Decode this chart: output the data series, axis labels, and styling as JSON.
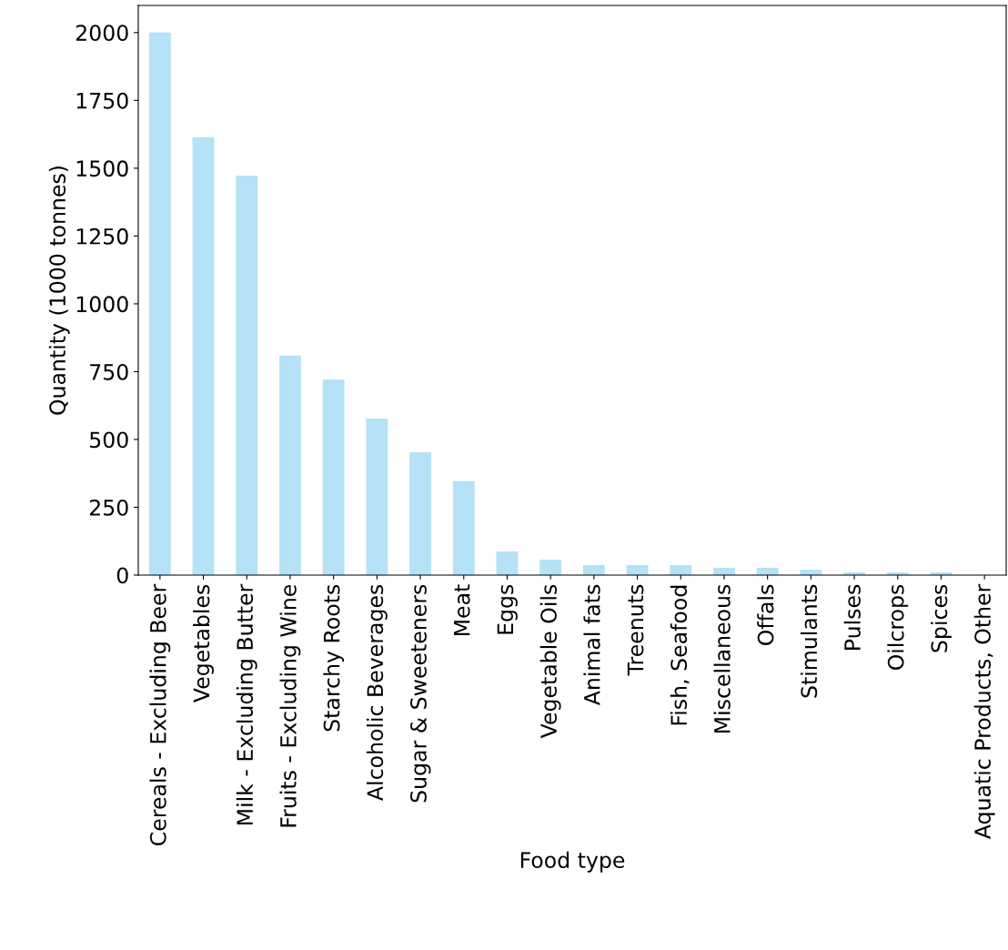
{
  "chart_data": {
    "type": "bar",
    "xlabel": "Food type",
    "ylabel": "Quantity (1000 tonnes)",
    "categories": [
      "Cereals - Excluding Beer",
      "Vegetables",
      "Milk - Excluding Butter",
      "Fruits - Excluding Wine",
      "Starchy Roots",
      "Alcoholic Beverages",
      "Sugar & Sweeteners",
      "Meat",
      "Eggs",
      "Vegetable Oils",
      "Animal fats",
      "Treenuts",
      "Fish, Seafood",
      "Miscellaneous",
      "Offals",
      "Stimulants",
      "Pulses",
      "Oilcrops",
      "Spices",
      "Aquatic Products, Other"
    ],
    "values": [
      2000,
      1614,
      1473,
      809,
      721,
      577,
      453,
      346,
      87,
      57,
      37,
      37,
      37,
      27,
      27,
      20,
      10,
      10,
      10,
      null
    ],
    "color": "#b5e2f7",
    "ylim": [
      0,
      2100
    ],
    "yticks": [
      0,
      250,
      500,
      750,
      1000,
      1250,
      1500,
      1750,
      2000
    ],
    "grid": false,
    "legend": false
  }
}
